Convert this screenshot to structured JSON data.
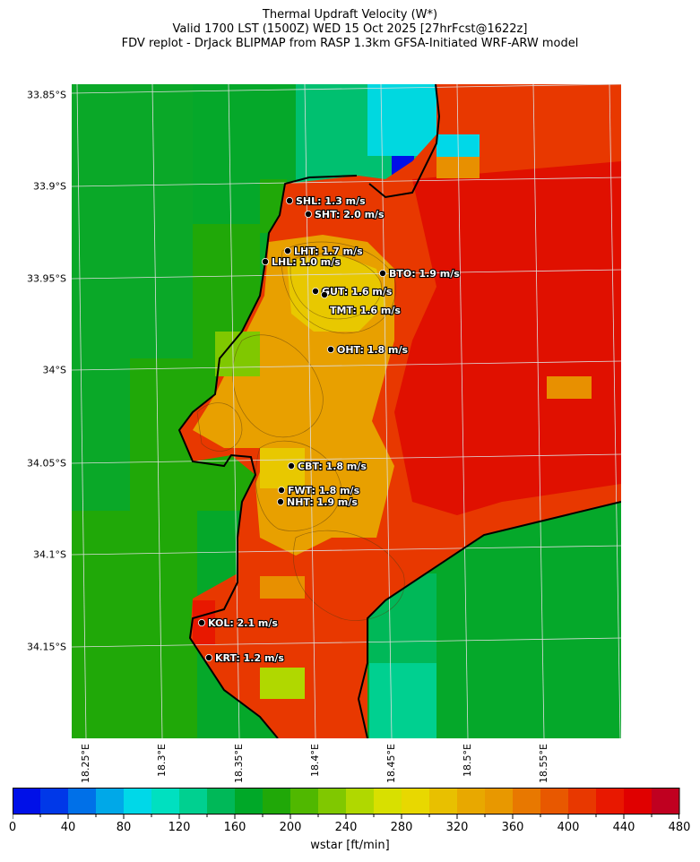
{
  "title": {
    "line1": "Thermal Updraft Velocity (W*)",
    "line2": "Valid 1700 LST (1500Z) WED 15 Oct 2025 [27hrFcst@1622z]",
    "line3": "FDV replot - DrJack BLIPMAP from RASP 1.3km GFSA-Initiated WRF-ARW model"
  },
  "axes": {
    "lat_ticks": [
      "33.85°S",
      "33.9°S",
      "33.95°S",
      "34°S",
      "34.05°S",
      "34.1°S",
      "34.15°S"
    ],
    "lon_ticks": [
      "18.25°E",
      "18.3°E",
      "18.35°E",
      "18.4°E",
      "18.45°E",
      "18.5°E",
      "18.55°E"
    ]
  },
  "stations": [
    {
      "code": "SHL",
      "label": "SHL: 1.3 m/s"
    },
    {
      "code": "SHT",
      "label": "SHT: 2.0 m/s"
    },
    {
      "code": "LHT",
      "label": "LHT: 1.7 m/s"
    },
    {
      "code": "LHL",
      "label": "LHL: 1.0 m/s"
    },
    {
      "code": "BTO",
      "label": "BTO: 1.9 m/s"
    },
    {
      "code": "GUT",
      "label": "GUT: 1.6 m/s"
    },
    {
      "code": "TMT",
      "label": "TMT: 1.6 m/s"
    },
    {
      "code": "OHT",
      "label": "OHT: 1.8 m/s"
    },
    {
      "code": "CBT",
      "label": "CBT: 1.8 m/s"
    },
    {
      "code": "FWT",
      "label": "FWT: 1.8 m/s"
    },
    {
      "code": "NHT",
      "label": "NHT: 1.9 m/s"
    },
    {
      "code": "KOL",
      "label": "KOL: 2.1 m/s"
    },
    {
      "code": "KRT",
      "label": "KRT: 1.2 m/s"
    }
  ],
  "colorbar": {
    "label": "wstar [ft/min]",
    "min": 0,
    "max": 480,
    "step": 20,
    "tick_labels": [
      "0",
      "40",
      "80",
      "120",
      "160",
      "200",
      "240",
      "280",
      "320",
      "360",
      "400",
      "440",
      "480"
    ],
    "colors": [
      "#0010e8",
      "#0038e8",
      "#0070e8",
      "#00a8e8",
      "#00d8e8",
      "#00e0c0",
      "#00d090",
      "#00b858",
      "#00a828",
      "#20a808",
      "#50b800",
      "#80c800",
      "#b0d800",
      "#d8e000",
      "#e8d800",
      "#e8c000",
      "#e8a800",
      "#e89800",
      "#e87800",
      "#e85800",
      "#e83800",
      "#e81800",
      "#e00000",
      "#c00020"
    ]
  }
}
